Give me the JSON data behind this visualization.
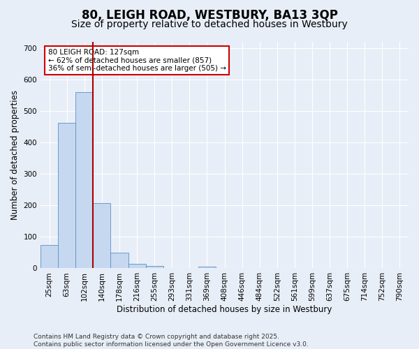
{
  "title": "80, LEIGH ROAD, WESTBURY, BA13 3QP",
  "subtitle": "Size of property relative to detached houses in Westbury",
  "xlabel": "Distribution of detached houses by size in Westbury",
  "ylabel": "Number of detached properties",
  "categories": [
    "25sqm",
    "63sqm",
    "102sqm",
    "140sqm",
    "178sqm",
    "216sqm",
    "255sqm",
    "293sqm",
    "331sqm",
    "369sqm",
    "408sqm",
    "446sqm",
    "484sqm",
    "522sqm",
    "561sqm",
    "599sqm",
    "637sqm",
    "675sqm",
    "714sqm",
    "752sqm",
    "790sqm"
  ],
  "values": [
    75,
    462,
    560,
    207,
    50,
    15,
    8,
    0,
    0,
    5,
    0,
    0,
    0,
    0,
    0,
    0,
    0,
    0,
    0,
    0,
    0
  ],
  "bar_color": "#c5d8f0",
  "bar_edge_color": "#5a8fc5",
  "vline_color": "#aa0000",
  "annotation_text": "80 LEIGH ROAD: 127sqm\n← 62% of detached houses are smaller (857)\n36% of semi-detached houses are larger (505) →",
  "annotation_box_color": "#ffffff",
  "annotation_box_edge": "#cc0000",
  "bg_color": "#e8eef7",
  "plot_bg_color": "#e8eef7",
  "footer": "Contains HM Land Registry data © Crown copyright and database right 2025.\nContains public sector information licensed under the Open Government Licence v3.0.",
  "ylim": [
    0,
    720
  ],
  "yticks": [
    0,
    100,
    200,
    300,
    400,
    500,
    600,
    700
  ],
  "title_fontsize": 12,
  "subtitle_fontsize": 10,
  "axis_label_fontsize": 8.5,
  "tick_fontsize": 7.5,
  "footer_fontsize": 6.5
}
